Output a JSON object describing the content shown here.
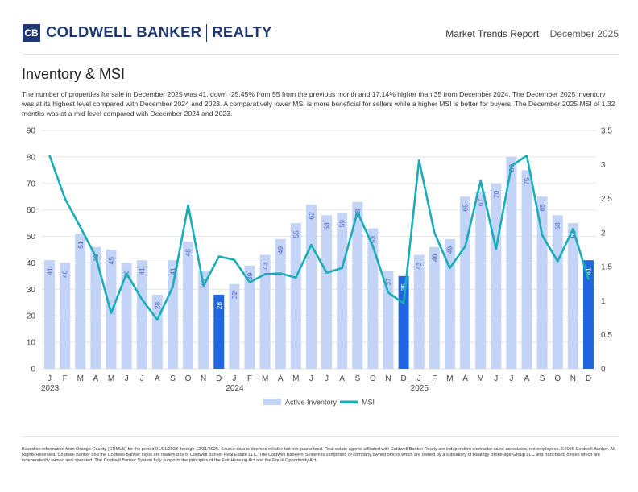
{
  "header": {
    "logo_mark": "CB",
    "brand": "COLDWELL BANKER",
    "brand_suffix": "REALTY",
    "report_title": "Market Trends Report",
    "report_date": "December 2025"
  },
  "section": {
    "title": "Inventory & MSI",
    "description": "The number of properties for sale in December 2025 was 41, down -25.45% from 55 from the previous month and 17.14% higher than 35 from December 2024. The December 2025 inventory was at its highest level compared with December 2024 and 2023. A comparatively lower MSI is more beneficial for sellers while a higher MSI is better for buyers. The December 2025 MSI of 1.32 months was at a mid level compared with December 2024 and 2023."
  },
  "chart_data": {
    "type": "bar+line",
    "categories": [
      "J",
      "F",
      "M",
      "A",
      "M",
      "J",
      "J",
      "A",
      "S",
      "O",
      "N",
      "D",
      "J",
      "F",
      "M",
      "A",
      "M",
      "J",
      "J",
      "A",
      "S",
      "O",
      "N",
      "D",
      "J",
      "F",
      "M",
      "A",
      "M",
      "J",
      "J",
      "A",
      "S",
      "O",
      "N",
      "D"
    ],
    "year_labels": [
      {
        "index": 0,
        "label": "2023"
      },
      {
        "index": 12,
        "label": "2024"
      },
      {
        "index": 24,
        "label": "2025"
      }
    ],
    "series": [
      {
        "name": "Active Inventory",
        "axis": "left",
        "values": [
          41,
          40,
          51,
          46,
          45,
          40,
          41,
          28,
          41,
          48,
          37,
          28,
          32,
          39,
          43,
          49,
          55,
          62,
          58,
          59,
          63,
          53,
          37,
          35,
          43,
          46,
          49,
          65,
          67,
          70,
          80,
          75,
          65,
          58,
          55,
          41
        ],
        "highlight_indices": [
          11,
          23,
          35
        ]
      },
      {
        "name": "MSI",
        "axis": "right",
        "values": [
          3.13,
          2.5,
          2.08,
          1.65,
          0.82,
          1.4,
          1.02,
          0.72,
          1.2,
          2.4,
          1.22,
          1.65,
          1.6,
          1.27,
          1.39,
          1.4,
          1.34,
          1.82,
          1.41,
          1.48,
          2.3,
          1.8,
          1.12,
          0.96,
          3.06,
          2.0,
          1.48,
          1.8,
          2.76,
          1.76,
          2.98,
          3.13,
          1.96,
          1.58,
          2.05,
          1.32
        ]
      }
    ],
    "yleft": {
      "min": 0,
      "max": 90,
      "ticks": [
        0,
        10,
        20,
        30,
        40,
        50,
        60,
        70,
        80,
        90
      ]
    },
    "yright": {
      "min": 0,
      "max": 3.5,
      "ticks": [
        "0",
        "0.5",
        "1",
        "1.5",
        "2",
        "2.5",
        "3",
        "3.5"
      ]
    },
    "legend": [
      "Active Inventory",
      "MSI"
    ],
    "colors": {
      "bar": "#c4d4f7",
      "bar_highlight": "#1f66e0",
      "line": "#19adb8",
      "bar_label": "#4a5ec0",
      "grid": "#e6e6e6"
    }
  },
  "footer": {
    "text": "Based on information from Orange County (CRMLS) for the period 01/01/2023 through 12/31/2025. Source data is deemed reliable but not guaranteed. Real estate agents affiliated with Coldwell Banker Realty are independent contractor sales associates, not employees. ©2026 Coldwell Banker. All Rights Reserved. Coldwell Banker and the Coldwell Banker logos are trademarks of Coldwell Banker Real Estate LLC. The Coldwell Banker® System is comprised of company owned offices which are owned by a subsidiary of Realogy Brokerage Group LLC and franchised offices which are independently owned and operated. The Coldwell Banker System fully supports the principles of the Fair Housing Act and the Equal Opportunity Act."
  }
}
